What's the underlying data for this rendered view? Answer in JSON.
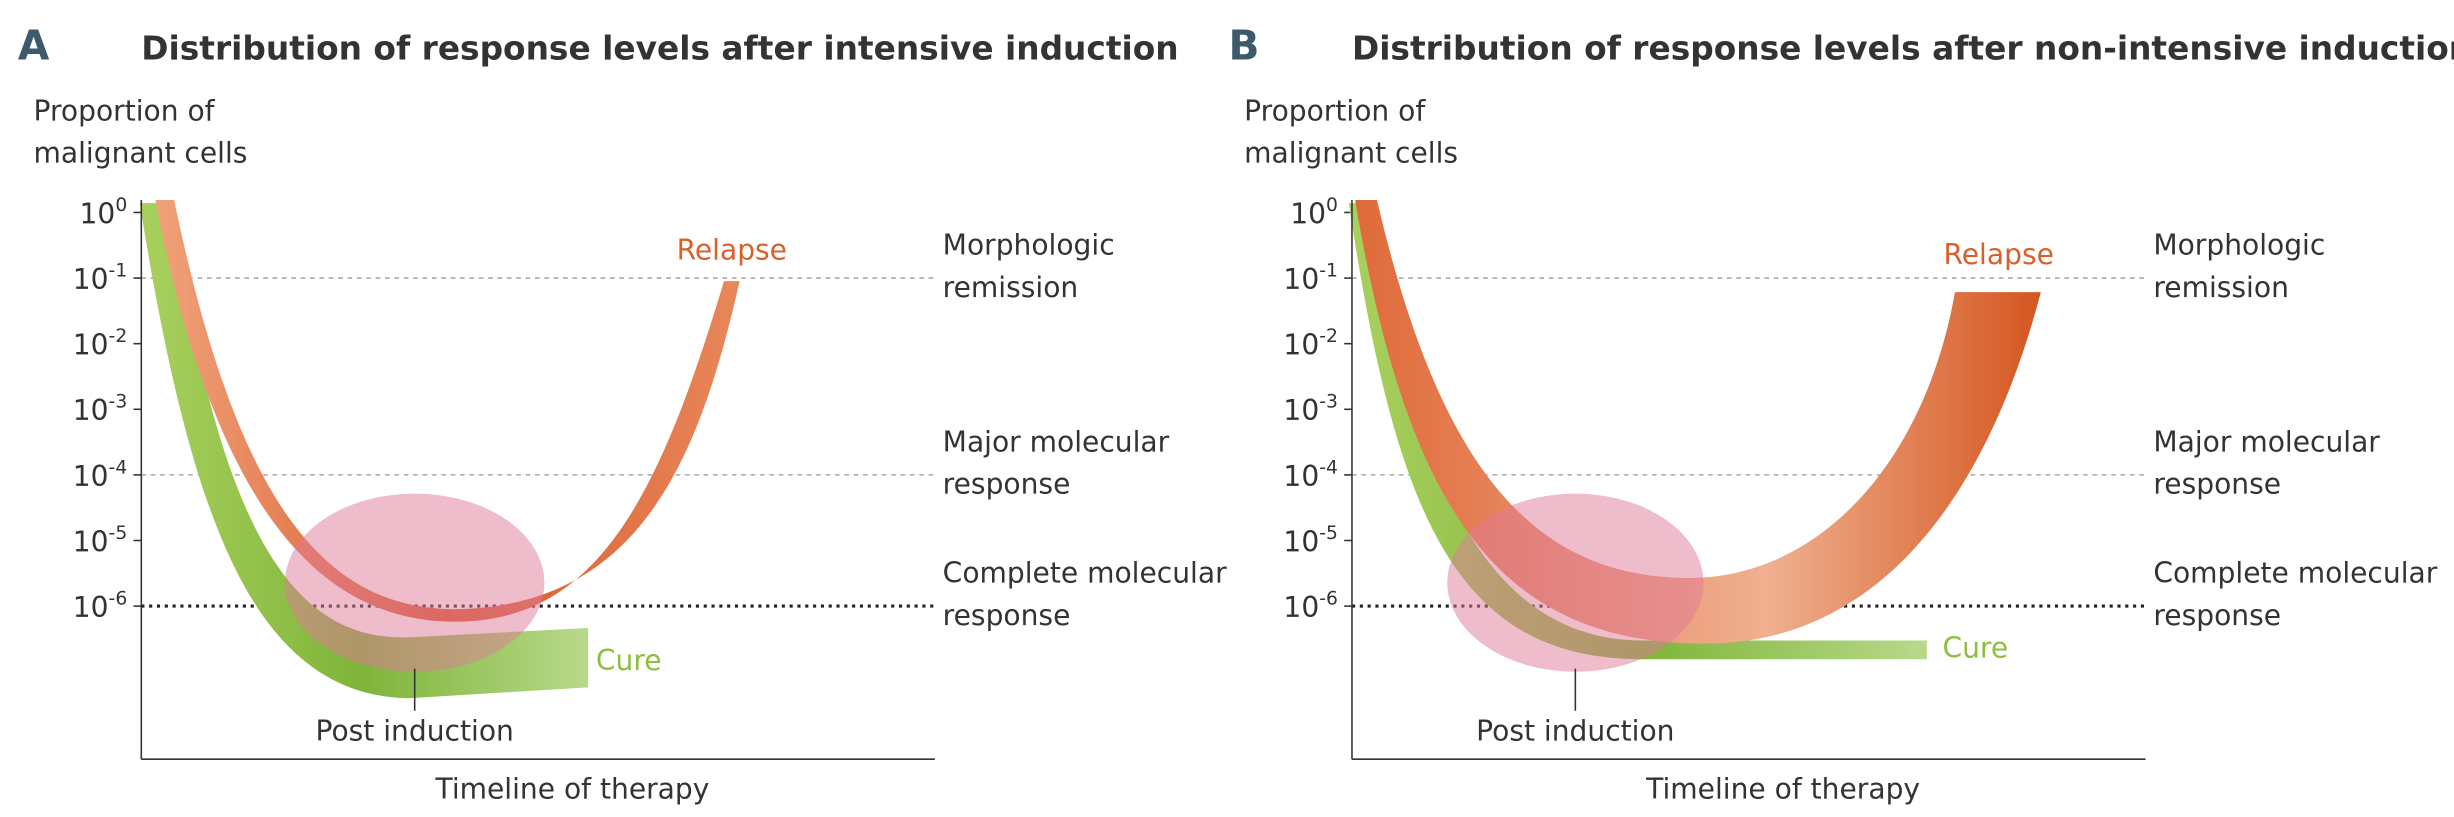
{
  "panels": [
    {
      "letter": "A",
      "title": "Distribution of response levels after intensive induction",
      "y_label": [
        "Proportion of",
        "malignant cells"
      ],
      "yticks": [
        {
          "base": "10",
          "exp": "0"
        },
        {
          "base": "10",
          "exp": "-1"
        },
        {
          "base": "10",
          "exp": "-2"
        },
        {
          "base": "10",
          "exp": "-3"
        },
        {
          "base": "10",
          "exp": "-4"
        },
        {
          "base": "10",
          "exp": "-5"
        },
        {
          "base": "10",
          "exp": "-6"
        }
      ],
      "thresholds": [
        {
          "lines": [
            "Morphologic",
            "remission"
          ]
        },
        {
          "lines": [
            "Major molecular",
            "response"
          ]
        },
        {
          "lines": [
            "Complete molecular",
            "response"
          ]
        }
      ],
      "x_label": "Timeline of therapy",
      "relapse": "Relapse",
      "cure": "Cure",
      "post_induction": "Post induction"
    },
    {
      "letter": "B",
      "title": "Distribution of response levels after non-intensive induction",
      "y_label": [
        "Proportion of",
        "malignant cells"
      ],
      "yticks": [
        {
          "base": "10",
          "exp": "0"
        },
        {
          "base": "10",
          "exp": "-1"
        },
        {
          "base": "10",
          "exp": "-2"
        },
        {
          "base": "10",
          "exp": "-3"
        },
        {
          "base": "10",
          "exp": "-4"
        },
        {
          "base": "10",
          "exp": "-5"
        },
        {
          "base": "10",
          "exp": "-6"
        }
      ],
      "thresholds": [
        {
          "lines": [
            "Morphologic",
            "remission"
          ]
        },
        {
          "lines": [
            "Major molecular",
            "response"
          ]
        },
        {
          "lines": [
            "Complete molecular",
            "response"
          ]
        }
      ],
      "x_label": "Timeline of therapy",
      "relapse": "Relapse",
      "cure": "Cure",
      "post_induction": "Post induction"
    }
  ]
}
